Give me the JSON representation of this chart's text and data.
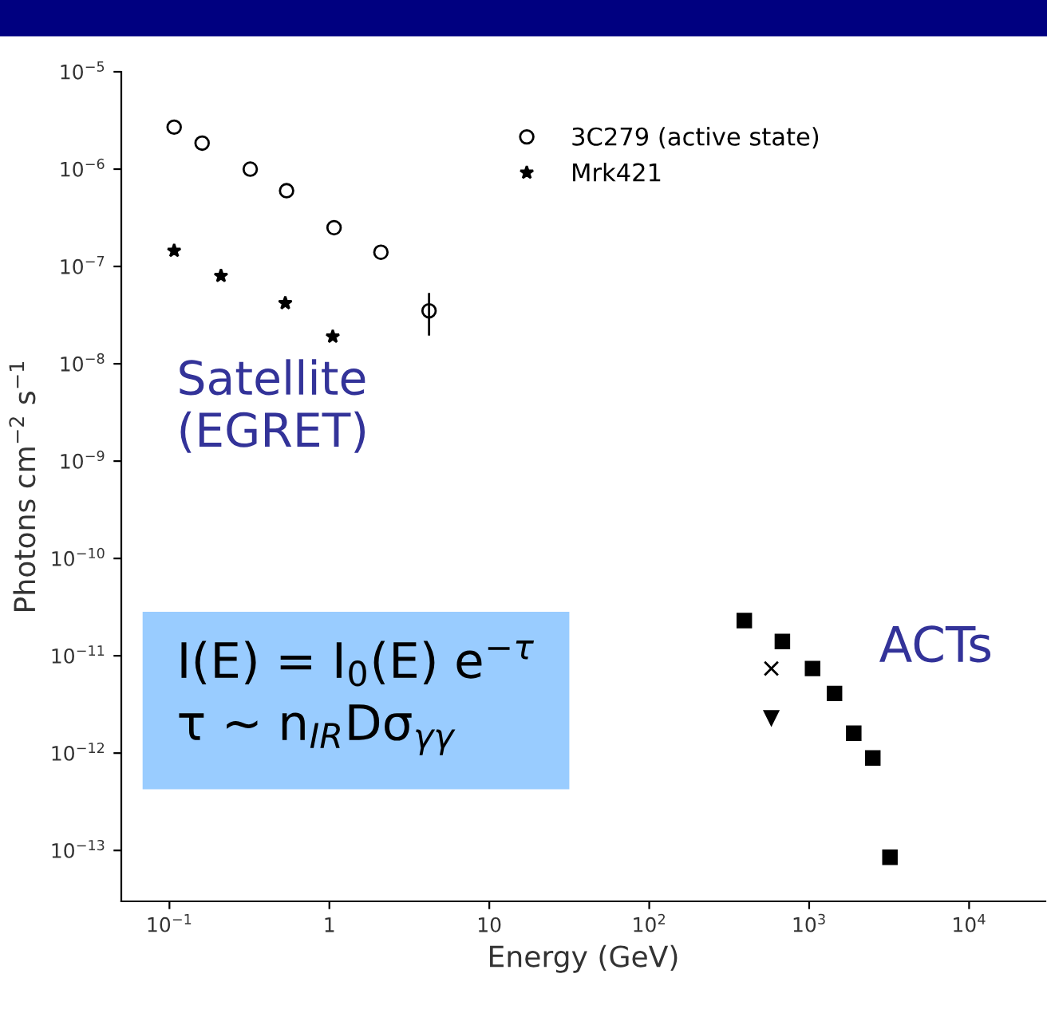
{
  "chart_data": {
    "type": "scatter",
    "xlabel": "Energy (GeV)",
    "ylabel": "Photons cm$^{−2}$ s$^{−1}$",
    "log": "xy",
    "grid": false,
    "legend": "top right",
    "xlim": [
      0.05,
      30000
    ],
    "ylim": [
      3e-14,
      1e-05
    ],
    "xticks": [
      {
        "value": 0.1,
        "label": "10$^{−1}$"
      },
      {
        "value": 1,
        "label": "1"
      },
      {
        "value": 10,
        "label": "10"
      },
      {
        "value": 100,
        "label": "10$^{2}$"
      },
      {
        "value": 1000,
        "label": "10$^{3}$"
      },
      {
        "value": 10000,
        "label": "10$^{4}$"
      }
    ],
    "yticks": [
      {
        "value": 1e-05,
        "label": "10$^{−5}$"
      },
      {
        "value": 1e-06,
        "label": "10$^{−6}$"
      },
      {
        "value": 1e-07,
        "label": "10$^{−7}$"
      },
      {
        "value": 1e-08,
        "label": "10$^{−8}$"
      },
      {
        "value": 1e-09,
        "label": "10$^{−9}$"
      },
      {
        "value": 1e-10,
        "label": "10$^{−10}$"
      },
      {
        "value": 1e-11,
        "label": "10$^{−11}$"
      },
      {
        "value": 1e-12,
        "label": "10$^{−12}$"
      },
      {
        "value": 1e-13,
        "label": "10$^{−13}$"
      }
    ],
    "series": [
      {
        "name": "3C279 (active state)",
        "color": "#000000",
        "marker": "circle",
        "x": [
          0.107,
          0.16,
          0.32,
          0.54,
          1.07,
          2.1,
          4.2
        ],
        "values": [
          2.7e-06,
          1.85e-06,
          1e-06,
          6e-07,
          2.5e-07,
          1.4e-07,
          3.5e-08
        ],
        "errors": [
          null,
          null,
          null,
          null,
          null,
          null,
          [
            2e-08,
            5.2e-08
          ]
        ]
      },
      {
        "name": "Mrk421",
        "color": "#000000",
        "marker": "star",
        "x": [
          0.107,
          0.21,
          0.53,
          1.05
        ],
        "values": [
          1.45e-07,
          8e-08,
          4.2e-08,
          1.9e-08
        ]
      },
      {
        "color": "#000000",
        "marker": "square",
        "x": [
          393,
          680,
          1050,
          1440,
          1900,
          2500,
          3200
        ],
        "values": [
          2.3e-11,
          1.4e-11,
          7.4e-12,
          4.1e-12,
          1.6e-12,
          8.9e-13,
          8.5e-14
        ]
      },
      {
        "color": "#000000",
        "marker": "cross",
        "x": [
          580
        ],
        "values": [
          7.4e-12
        ]
      },
      {
        "color": "#000000",
        "marker": "triangle",
        "x": [
          580
        ],
        "values": [
          2.3e-12
        ]
      }
    ],
    "annotations": [
      "Satellite\n(EGRET)",
      "ACTs",
      "I(E) = I$_{0}$(E) e$^{−τ}$\nτ ~ n$_{IR}$Dσ$_{γγ}$"
    ]
  }
}
